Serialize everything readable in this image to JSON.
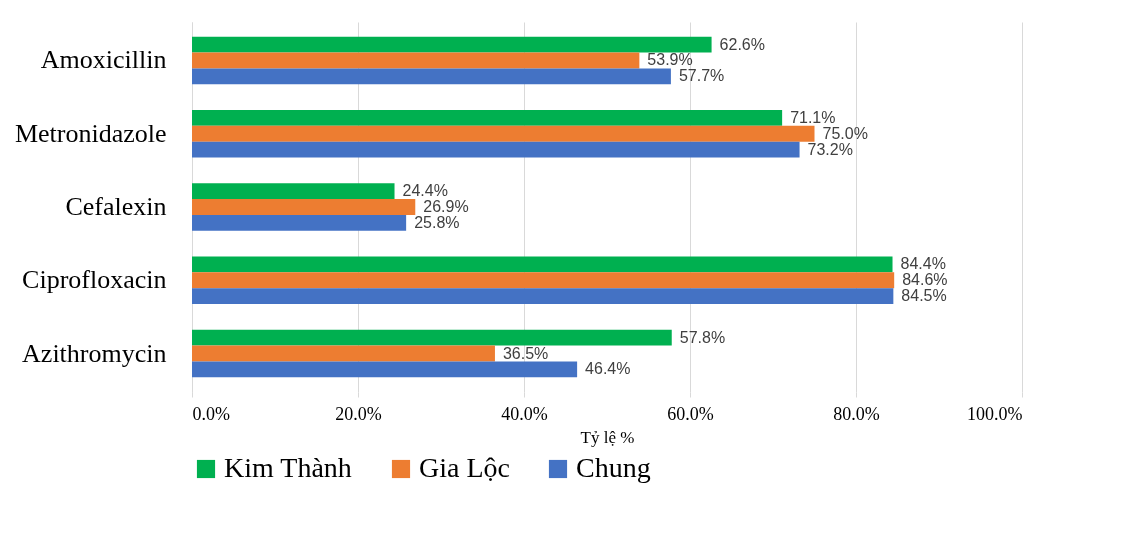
{
  "chart_data": {
    "type": "bar",
    "orientation": "horizontal",
    "xlabel": "Tỷ lệ %",
    "categories": [
      "Amoxicillin",
      "Metronidazole",
      "Cefalexin",
      "Ciprofloxacin",
      "Azithromycin"
    ],
    "series": [
      {
        "name": "Kim Thành",
        "color": "#00b050",
        "values": [
          62.6,
          71.1,
          24.4,
          84.4,
          57.8
        ],
        "value_labels": [
          "62.6%",
          "71.1%",
          "24.4%",
          "84.4%",
          "57.8%"
        ]
      },
      {
        "name": "Gia Lộc",
        "color": "#ed7d31",
        "values": [
          53.9,
          75.0,
          26.9,
          84.6,
          36.5
        ],
        "value_labels": [
          "53.9%",
          "75.0%",
          "26.9%",
          "84.6%",
          "36.5%"
        ]
      },
      {
        "name": "Chung",
        "color": "#4472c4",
        "values": [
          57.7,
          73.2,
          25.8,
          84.5,
          46.4
        ],
        "value_labels": [
          "57.7%",
          "73.2%",
          "25.8%",
          "84.5%",
          "46.4%"
        ]
      }
    ],
    "xlim": [
      0,
      100
    ],
    "xticks": [
      {
        "value": 0,
        "label": "0.0%"
      },
      {
        "value": 20,
        "label": "20.0%"
      },
      {
        "value": 40,
        "label": "40.0%"
      },
      {
        "value": 60,
        "label": "60.0%"
      },
      {
        "value": 80,
        "label": "80.0%"
      },
      {
        "value": 100,
        "label": "100.0%"
      }
    ],
    "grid": "x",
    "legend": "bottom"
  }
}
